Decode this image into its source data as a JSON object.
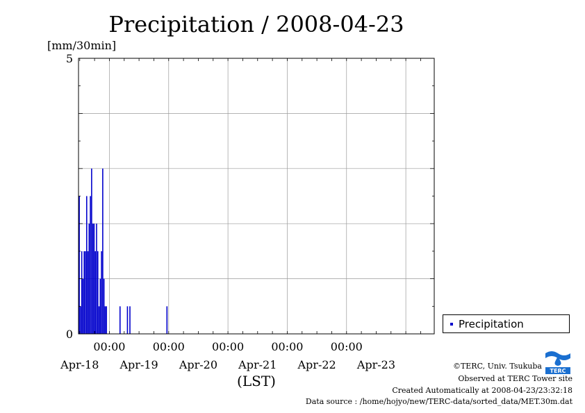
{
  "chart_data": {
    "type": "bar",
    "title": "Precipitation / 2008-04-23",
    "ylabel": "[mm/30min]",
    "xlabel": "(LST)",
    "ylim": [
      0,
      5
    ],
    "yticks_labeled": [
      "0",
      "5"
    ],
    "xlim": [
      "2008-04-17T11:30",
      "2008-04-23T11:30"
    ],
    "x_time_labels": [
      "00:00",
      "00:00",
      "00:00",
      "00:00",
      "00:00"
    ],
    "x_date_labels": [
      "Apr-18",
      "Apr-19",
      "Apr-20",
      "Apr-21",
      "Apr-22",
      "Apr-23"
    ],
    "grid": true,
    "legend_position": "right-bottom",
    "series": [
      {
        "name": "Precipitation",
        "color": "#0000cc",
        "points": [
          [
            "2008-04-17T11:30",
            2.5
          ],
          [
            "2008-04-17T12:00",
            0.5
          ],
          [
            "2008-04-17T12:30",
            1.5
          ],
          [
            "2008-04-17T13:00",
            1.0
          ],
          [
            "2008-04-17T13:30",
            1.5
          ],
          [
            "2008-04-17T14:00",
            1.5
          ],
          [
            "2008-04-17T14:30",
            2.5
          ],
          [
            "2008-04-17T15:00",
            1.5
          ],
          [
            "2008-04-17T15:30",
            2.0
          ],
          [
            "2008-04-17T16:00",
            2.5
          ],
          [
            "2008-04-17T16:30",
            3.0
          ],
          [
            "2008-04-17T17:00",
            2.0
          ],
          [
            "2008-04-17T17:30",
            2.0
          ],
          [
            "2008-04-17T18:00",
            1.5
          ],
          [
            "2008-04-17T18:30",
            2.0
          ],
          [
            "2008-04-17T19:00",
            1.5
          ],
          [
            "2008-04-17T19:30",
            0.5
          ],
          [
            "2008-04-17T20:00",
            1.0
          ],
          [
            "2008-04-17T20:30",
            1.5
          ],
          [
            "2008-04-17T21:00",
            3.0
          ],
          [
            "2008-04-17T21:30",
            1.0
          ],
          [
            "2008-04-17T22:00",
            0.5
          ],
          [
            "2008-04-17T22:30",
            0.5
          ],
          [
            "2008-04-18T04:00",
            0.5
          ],
          [
            "2008-04-18T07:00",
            0.5
          ],
          [
            "2008-04-18T08:00",
            0.5
          ],
          [
            "2008-04-18T23:00",
            0.5
          ]
        ]
      }
    ]
  },
  "footer": {
    "copyright": "©TERC, Univ. Tsukuba",
    "observed": "Observed at TERC Tower site",
    "created": "Created Automatically at 2008-04-23/23:32:18",
    "source": "Data source : /home/hojyo/new/TERC-data/sorted_data/MET.30m.dat"
  },
  "logo": {
    "text": "TERC",
    "color": "#1a6fd0"
  }
}
